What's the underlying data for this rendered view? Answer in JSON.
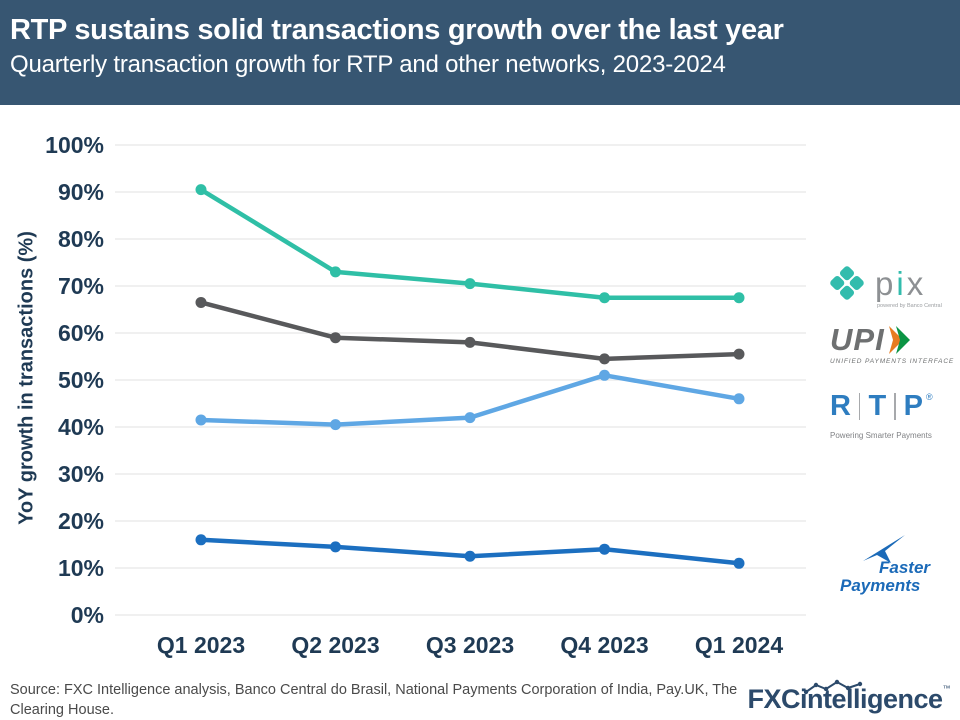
{
  "header": {
    "title": "RTP sustains solid transactions growth over the last year",
    "subtitle": "Quarterly transaction growth for RTP and other networks, 2023-2024"
  },
  "chart_data": {
    "type": "line",
    "title": "Quarterly transaction growth for RTP and other networks, 2023-2024",
    "xlabel": "",
    "ylabel": "YoY growth in transactions (%)",
    "categories": [
      "Q1 2023",
      "Q2 2023",
      "Q3 2023",
      "Q4 2023",
      "Q1 2024"
    ],
    "series": [
      {
        "name": "Pix",
        "color": "#2fbfa6",
        "values": [
          90.5,
          73,
          70.5,
          67.5,
          67.5
        ]
      },
      {
        "name": "UPI",
        "color": "#58595b",
        "values": [
          66.5,
          59,
          58,
          54.5,
          55.5
        ]
      },
      {
        "name": "RTP",
        "color": "#5fa7e4",
        "values": [
          41.5,
          40.5,
          42,
          51,
          46
        ]
      },
      {
        "name": "Faster Payments",
        "color": "#1c6fc0",
        "values": [
          16,
          14.5,
          12.5,
          14,
          11
        ]
      }
    ],
    "ylim": [
      0,
      100
    ],
    "y_tick_step": 10,
    "y_tick_labels": [
      "0%",
      "10%",
      "20%",
      "30%",
      "40%",
      "50%",
      "60%",
      "70%",
      "80%",
      "90%",
      "100%"
    ],
    "grid": true,
    "legend_position": "right-logos"
  },
  "logos": {
    "pix": {
      "word": "pix",
      "tagline": "powered by Banco Central"
    },
    "upi": {
      "word": "UPI",
      "tagline": "UNIFIED PAYMENTS INTERFACE"
    },
    "rtp": {
      "l1": "R",
      "l2": "T",
      "l3": "P",
      "registered": "®",
      "tagline": "Powering Smarter Payments"
    },
    "faster_payments": {
      "line1": "Faster",
      "line2": "Payments"
    }
  },
  "footer": {
    "source": "Source: FXC Intelligence analysis, Banco Central do Brasil, National Payments Corporation of India,  Pay.UK, The Clearing House.",
    "brand_bold": "FXC",
    "brand_rest": "intelligence",
    "brand_tm": "™"
  }
}
